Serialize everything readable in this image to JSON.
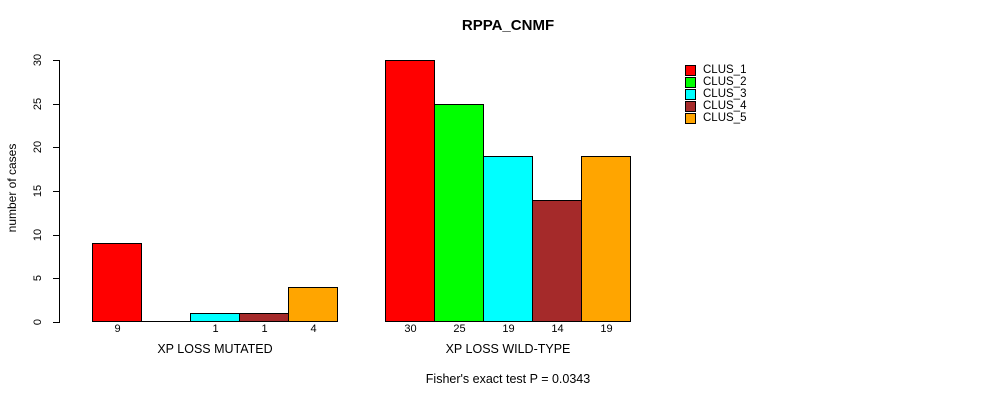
{
  "chart_data": {
    "type": "bar",
    "title": "RPPA_CNMF",
    "ylabel": "number of cases",
    "xlabel": "",
    "ylim": [
      0,
      30
    ],
    "yticks": [
      0,
      5,
      10,
      15,
      20,
      25,
      30
    ],
    "grid": false,
    "legend_position": "right",
    "series": [
      {
        "name": "CLUS_1",
        "color": "#FF0000",
        "values": [
          9,
          30
        ]
      },
      {
        "name": "CLUS_2",
        "color": "#00FF00",
        "values": [
          0,
          25
        ]
      },
      {
        "name": "CLUS_3",
        "color": "#00FFFF",
        "values": [
          1,
          19
        ]
      },
      {
        "name": "CLUS_4",
        "color": "#A52A2A",
        "values": [
          1,
          14
        ]
      },
      {
        "name": "CLUS_5",
        "color": "#FFA500",
        "values": [
          4,
          19
        ]
      }
    ],
    "groups": [
      {
        "label": "XP LOSS MUTATED",
        "values": [
          9,
          0,
          1,
          1,
          4
        ],
        "bar_labels": [
          "9",
          "",
          "1",
          "1",
          "4"
        ]
      },
      {
        "label": "XP LOSS WILD-TYPE",
        "values": [
          30,
          25,
          19,
          14,
          19
        ],
        "bar_labels": [
          "30",
          "25",
          "19",
          "14",
          "19"
        ]
      }
    ],
    "annotation": "Fisher's exact test P = 0.0343"
  }
}
